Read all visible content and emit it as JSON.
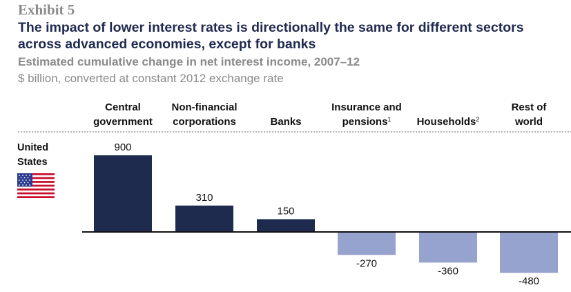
{
  "header": {
    "exhibit": "Exhibit 5",
    "title": "The impact of lower interest rates is directionally the same for different sectors across advanced economies, except for banks",
    "subtitle": "Estimated cumulative change in net interest income, 2007–12",
    "unit": "$ billion, converted at constant 2012 exchange rate"
  },
  "row": {
    "country": "United States",
    "flag_icon": "us-flag-icon"
  },
  "colors": {
    "positive": "#1f2a4f",
    "negative": "#97a3cf",
    "axis": "#111111",
    "divider": "#888888"
  },
  "chart_data": {
    "type": "bar",
    "categories": [
      {
        "lines": [
          "Central",
          "government"
        ],
        "sup": ""
      },
      {
        "lines": [
          "Non-financial",
          "corporations"
        ],
        "sup": ""
      },
      {
        "lines": [
          "Banks"
        ],
        "sup": ""
      },
      {
        "lines": [
          "Insurance and",
          "pensions"
        ],
        "sup": "1"
      },
      {
        "lines": [
          "Households"
        ],
        "sup": "2"
      },
      {
        "lines": [
          "Rest of",
          "world"
        ],
        "sup": ""
      }
    ],
    "series": [
      {
        "values": [
          900,
          310,
          150,
          -270,
          -360,
          -480
        ],
        "value_labels": [
          "900",
          "310",
          "150",
          "-270",
          "-360",
          "-480"
        ]
      }
    ],
    "xlabel": "",
    "ylabel": "",
    "ylim": [
      -480,
      900
    ]
  }
}
